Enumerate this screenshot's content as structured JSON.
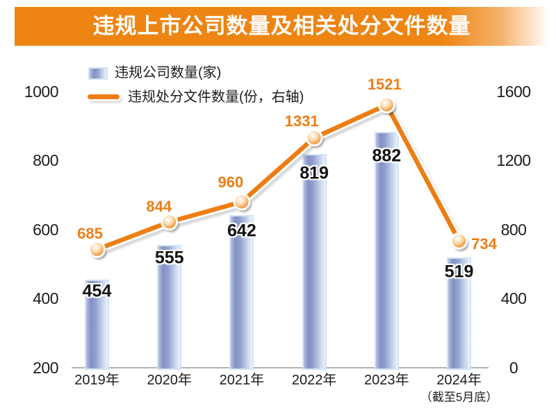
{
  "title": "违规上市公司数量及相关处分文件数量",
  "legend": [
    {
      "label": "违规公司数量(家)",
      "type": "bar-swatch"
    },
    {
      "label": "违规处分文件数量(份，右轴)",
      "type": "line-swatch"
    }
  ],
  "colors": {
    "banner_orange": "#ee8412",
    "line_orange": "#ee7d12",
    "orange_label": "#ee7d17",
    "bar_dark_blue": "#8290c4",
    "bar_light_blue": "#edf2fb",
    "bar_border": "#cfe4f6",
    "axis_gray": "#b3b3b3",
    "text_black": "#1c1c1c"
  },
  "chart_data": {
    "type": "bar+line",
    "title": "违规上市公司数量及相关处分文件数量",
    "categories": [
      "2019年",
      "2020年",
      "2021年",
      "2022年",
      "2023年",
      "2024年"
    ],
    "last_category_note": "（截至5月底）",
    "series": [
      {
        "name": "违规公司数量(家)",
        "type": "bar",
        "axis": "left",
        "values": [
          454,
          555,
          642,
          819,
          882,
          519
        ]
      },
      {
        "name": "违规处分文件数量(份，右轴)",
        "type": "line",
        "axis": "right",
        "values": [
          685,
          844,
          960,
          1331,
          1521,
          734
        ]
      }
    ],
    "left_axis": {
      "min": 200,
      "max": 1000,
      "ticks": [
        200,
        400,
        600,
        800,
        1000
      ]
    },
    "right_axis": {
      "min": 0,
      "max": 1600,
      "ticks": [
        0,
        400,
        800,
        1200,
        1600
      ]
    },
    "grid": false,
    "legend_position": "top-left"
  }
}
